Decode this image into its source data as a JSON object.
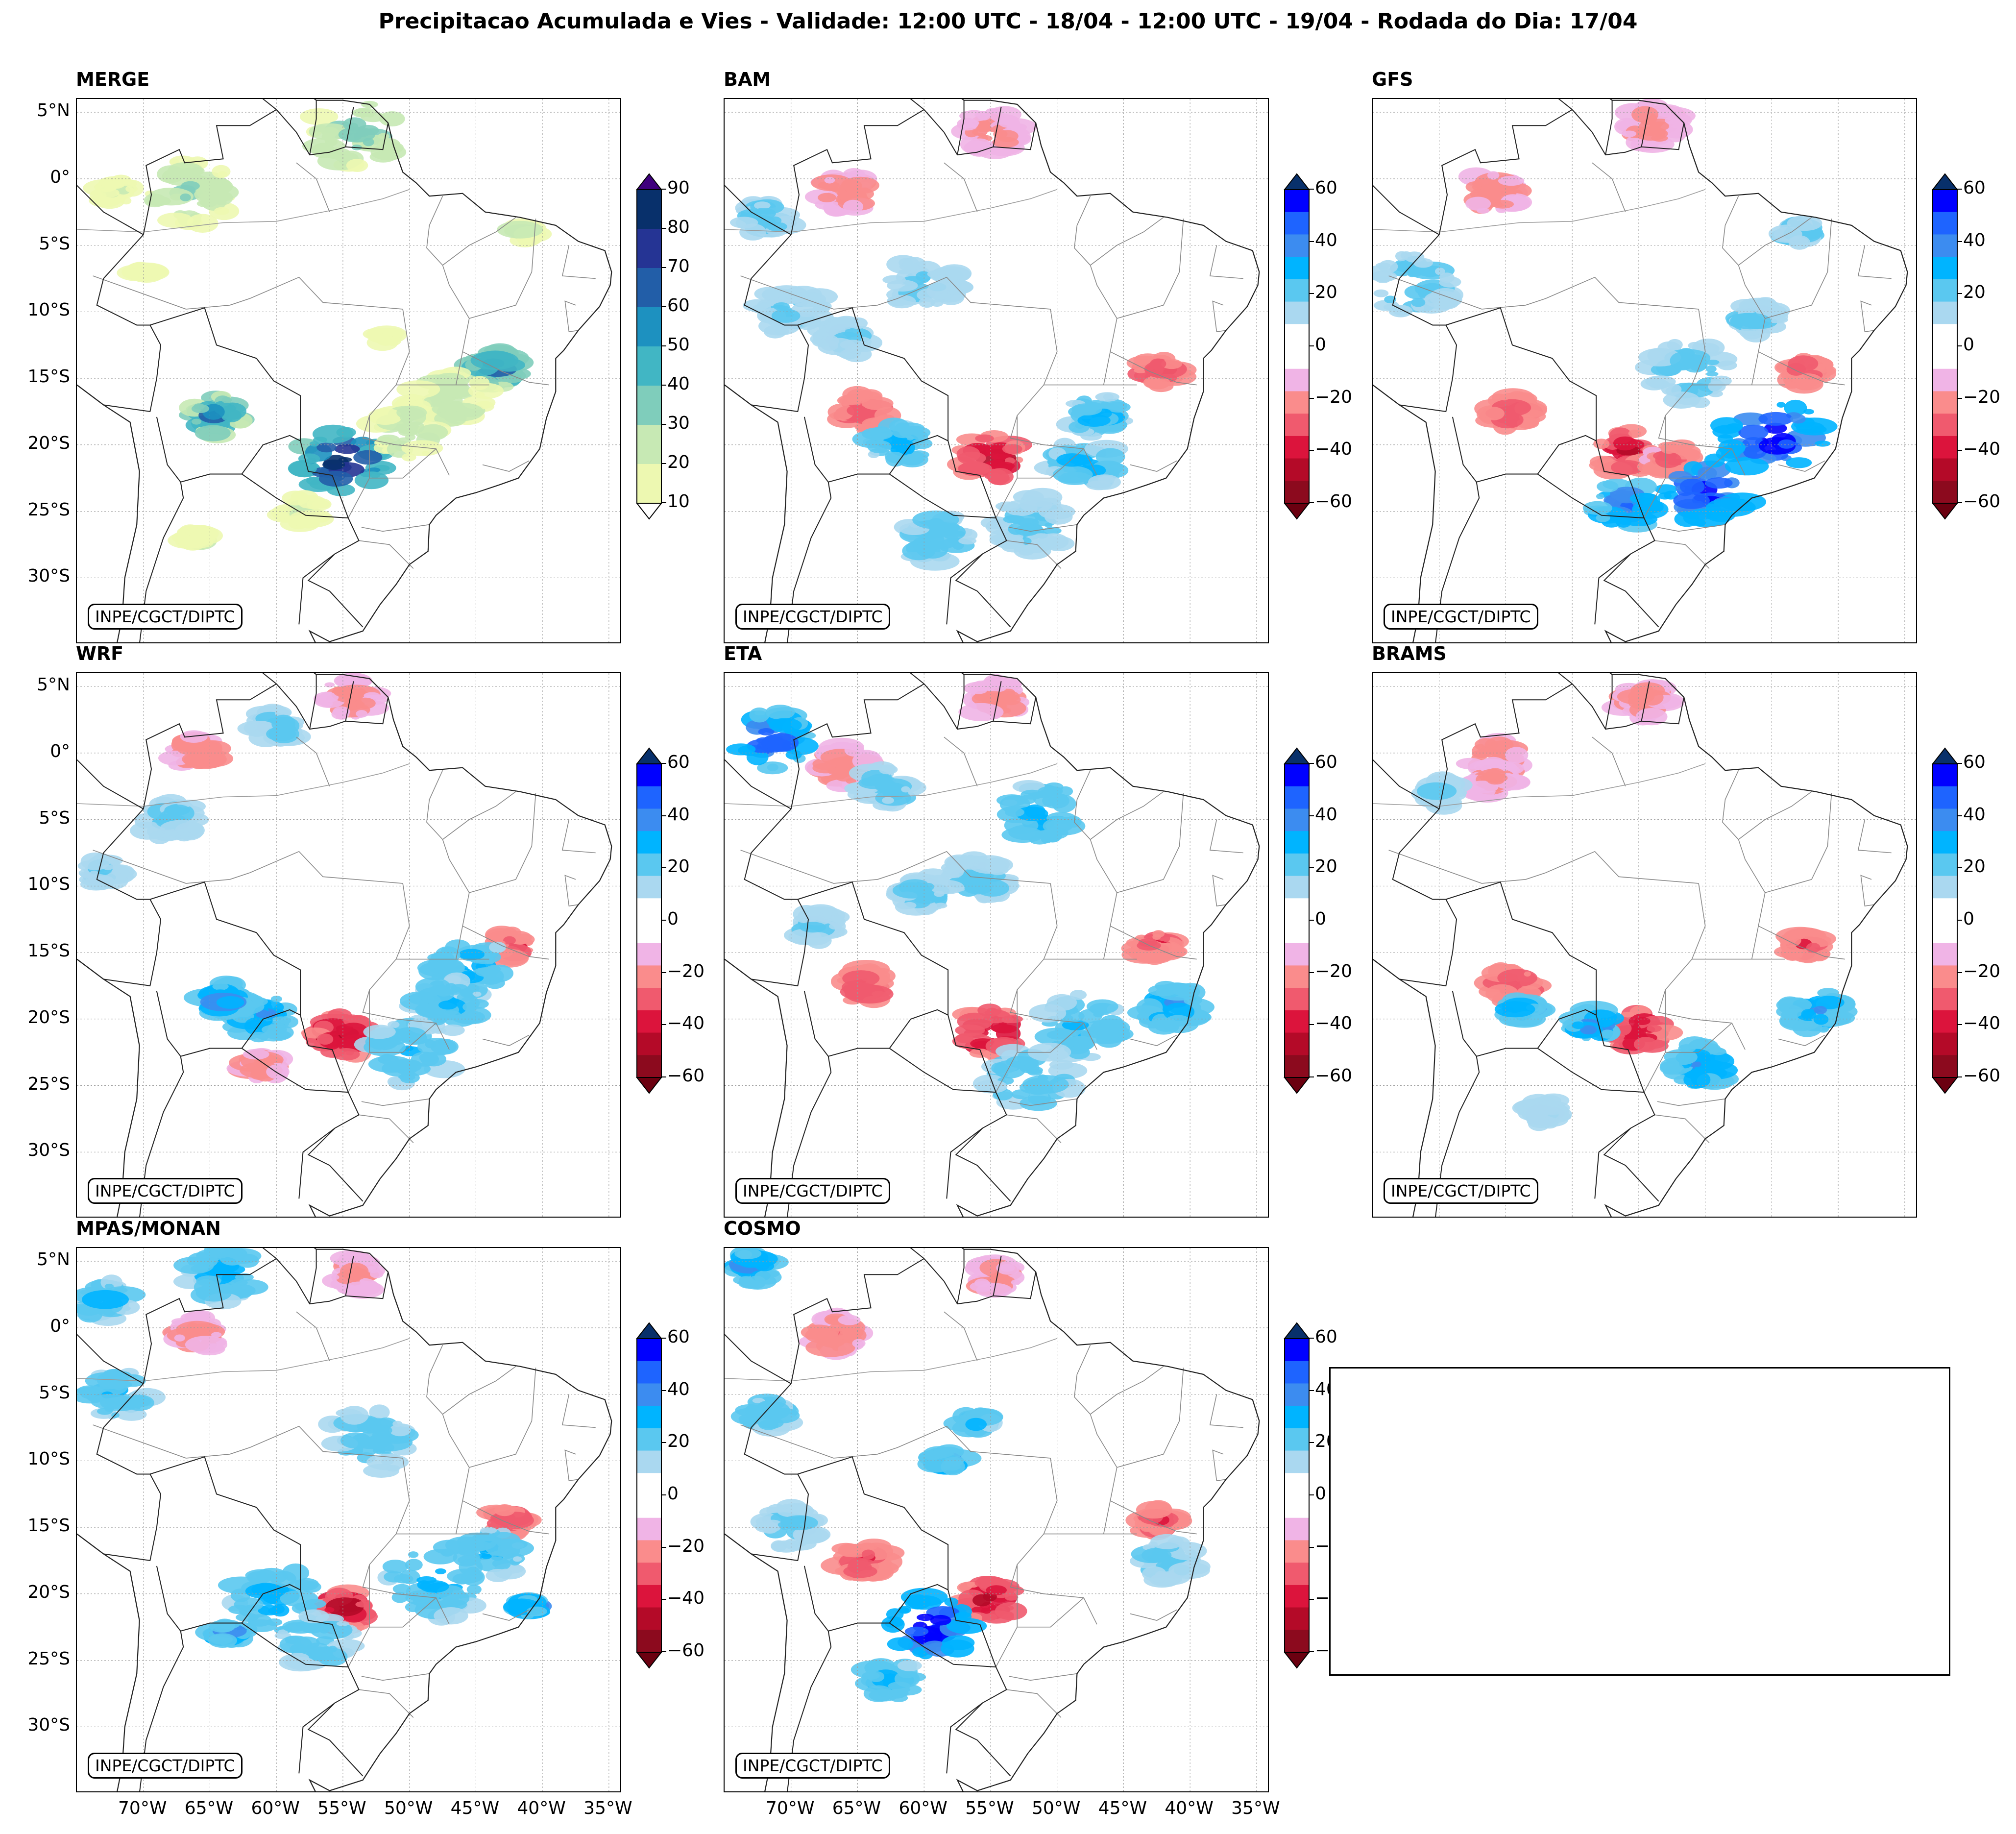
{
  "title": "Precipitacao Acumulada e Vies - Validade: 12:00 UTC - 18/04 - 12:00 UTC - 19/04 - Rodada do Dia: 17/04",
  "credit": "INPE/CGCT/DIPTC",
  "lat_labels": [
    "5°N",
    "0°",
    "5°S",
    "10°S",
    "15°S",
    "20°S",
    "25°S",
    "30°S"
  ],
  "lon_labels": [
    "70°W",
    "65°W",
    "60°W",
    "55°W",
    "50°W",
    "45°W",
    "40°W",
    "35°W"
  ],
  "panels": [
    {
      "name": "MERGE",
      "kind": "precip"
    },
    {
      "name": "BAM",
      "kind": "bias"
    },
    {
      "name": "GFS",
      "kind": "bias"
    },
    {
      "name": "WRF",
      "kind": "bias"
    },
    {
      "name": "ETA",
      "kind": "bias"
    },
    {
      "name": "BRAMS",
      "kind": "bias"
    },
    {
      "name": "MPAS/MONAN",
      "kind": "bias"
    },
    {
      "name": "COSMO",
      "kind": "bias"
    }
  ],
  "precip_colorbar": {
    "ticks": [
      "90",
      "80",
      "70",
      "60",
      "50",
      "40",
      "30",
      "20",
      "10"
    ],
    "colors": [
      "#08306b",
      "#253494",
      "#225ea8",
      "#1d91c0",
      "#41b6c4",
      "#7fcdbb",
      "#c7e9b4",
      "#edf8b1"
    ],
    "over_color": "#3f007d",
    "under_color": "#ffffff"
  },
  "bias_colorbar": {
    "ticks": [
      "60",
      "40",
      "20",
      "0",
      "−20",
      "−40",
      "−60"
    ],
    "colors": [
      "#0000ff",
      "#1e64ff",
      "#3c8cf0",
      "#00b4ff",
      "#5ac8f0",
      "#aad8f0",
      "#ffffff",
      "#ffffff",
      "#f0b4e6",
      "#fa8c8c",
      "#f05a6e",
      "#dc143c",
      "#b40a28",
      "#8c0a1e"
    ],
    "over_color": "#08306b",
    "under_color": "#6b0010"
  },
  "colors": {
    "coast": "#222222",
    "state_border": "#888888",
    "grid": "#999999"
  }
}
